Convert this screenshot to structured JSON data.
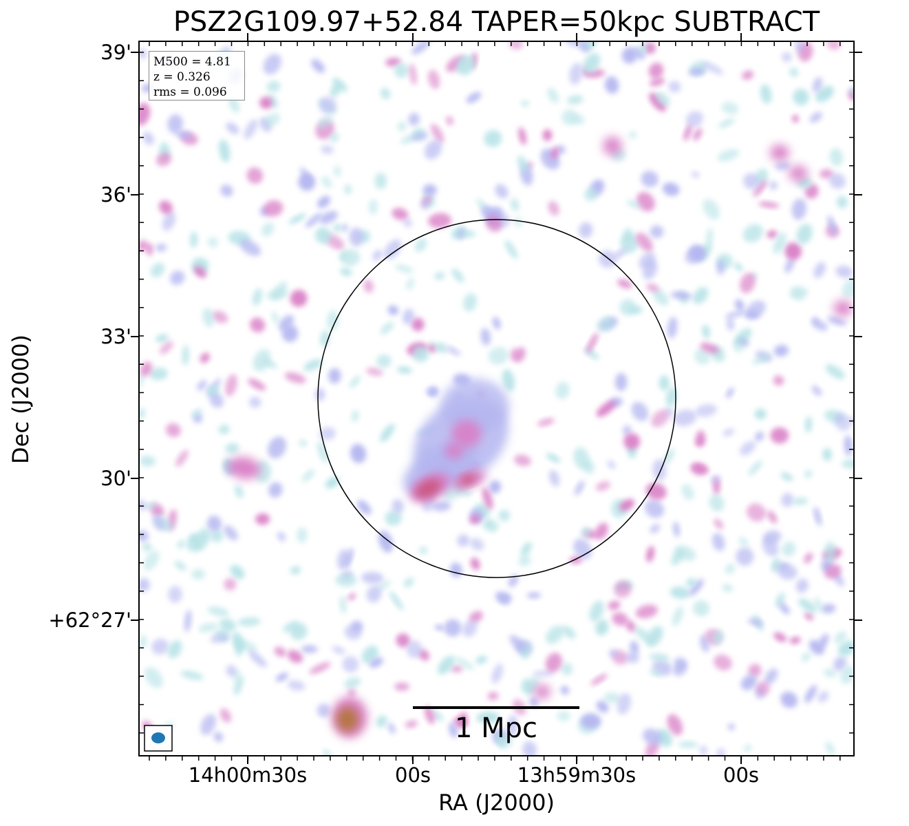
{
  "title": "PSZ2G109.97+52.84 TAPER=50kpc SUBTRACT",
  "xlabel": "RA (J2000)",
  "ylabel": "Dec (J2000)",
  "x_ticks": [
    "14h00m30s",
    "00s",
    "13h59m30s",
    "00s"
  ],
  "y_ticks": [
    "39'",
    "36'",
    "33'",
    "30'",
    "+62°27'"
  ],
  "info": {
    "mass": "M500 = 4.81",
    "redshift": "z = 0.326",
    "rms": "rms = 0.096"
  },
  "scale_bar": {
    "label": "1 Mpc",
    "length_mpc": 1
  },
  "colors": {
    "low": "#b6e2e6",
    "mid": "#b4b6f0",
    "high": "#d97fc6",
    "peak": "#c8557a",
    "core": "#b4753e",
    "beam": "#1f77b4"
  }
}
